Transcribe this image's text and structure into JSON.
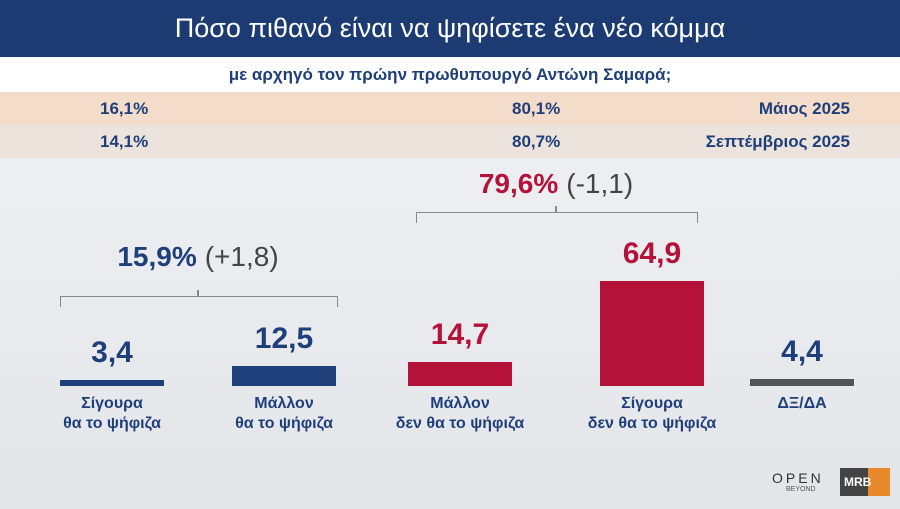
{
  "chart_data": {
    "type": "bar",
    "title": "Πόσο πιθανό είναι να ψηφίσετε ένα νέο κόμμα",
    "subtitle": "με αρχηγό τον πρώην πρωθυπουργό Αντώνη Σαμαρά;",
    "comparison_rows": [
      [
        "16,1%",
        "80,1%",
        "Μάιος 2025"
      ],
      [
        "14,1%",
        "80,7%",
        "Σεπτέμβριος 2025"
      ]
    ],
    "groups": [
      {
        "label": "15,9%",
        "change": "(+1,8)",
        "color": "#1f3f7a"
      },
      {
        "label": "79,6%",
        "change": "(-1,1)",
        "color": "#b5123a"
      }
    ],
    "categories": [
      "Σίγουρα\nθα το ψήφιζα",
      "Μάλλον\nθα το ψήφιζα",
      "Μάλλον\nδεν θα το ψήφιζα",
      "Σίγουρα\nδεν θα το ψήφιζα",
      "ΔΞ/ΔΑ"
    ],
    "values": [
      3.4,
      12.5,
      14.7,
      64.9,
      4.4
    ],
    "value_labels": [
      "3,4",
      "12,5",
      "14,7",
      "64,9",
      "4,4"
    ],
    "colors": [
      "#1f3f7a",
      "#1f3f7a",
      "#b5123a",
      "#b5123a",
      "#555555"
    ],
    "logos": [
      "OPEN",
      "BEYOND",
      "MRB"
    ]
  }
}
